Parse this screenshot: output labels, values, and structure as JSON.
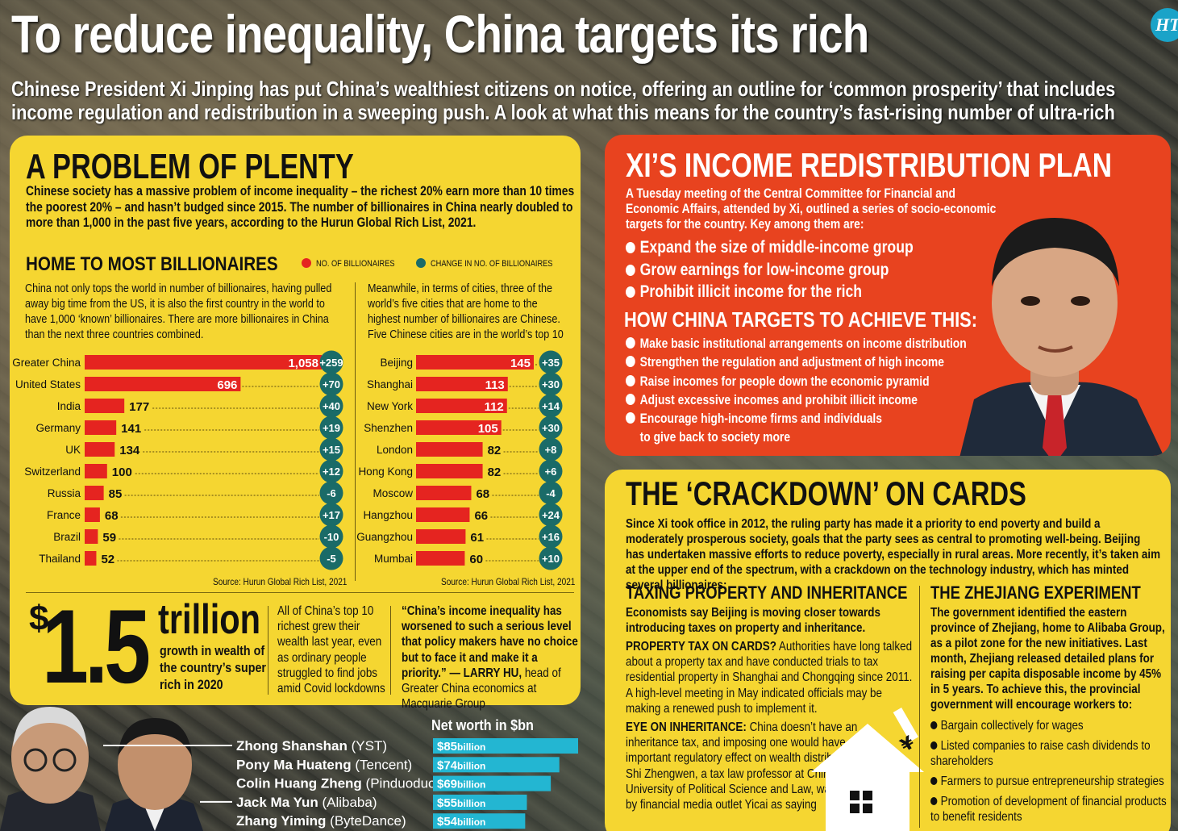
{
  "header": {
    "title": "To reduce inequality, China targets its rich",
    "subtitle": "Chinese President Xi Jinping has put China’s wealthiest citizens on notice, offering an outline for ‘common prosperity’ that includes income regulation and redistribution in a sweeping push. A look at what this means for the country’s fast-rising number of ultra-rich",
    "logo": "HT"
  },
  "problem": {
    "heading": "A PROBLEM OF PLENTY",
    "intro": "Chinese society has a massive problem of income inequality – the richest 20% earn more than 10 times the poorest 20% – and hasn’t budged since 2015. The number of billionaires in China nearly doubled to more than 1,000 in the past five years, according to the Hurun Global Rich List, 2021.",
    "subheading": "HOME TO MOST BILLIONAIRES",
    "legend_count": "NO. OF BILLIONAIRES",
    "legend_change": "CHANGE IN NO. OF BILLIONAIRES",
    "countries_text": "China not only tops the world in number of billionaires, having pulled away big time from the US, it is also the first country in the world to have 1,000 ‘known’ billionaires. There are more billionaires in China than the next three countries combined.",
    "cities_text": "Meanwhile, in terms of cities, three of the world’s five cities that are home to the highest number of billionaires are Chinese. Five Chinese cities are in the world’s top 10",
    "source_left": "Source: Hurun Global Rich List, 2021",
    "source_right": "Source: Hurun Global Rich List, 2021"
  },
  "stat": {
    "dollar": "$",
    "amount": "1.5",
    "unit": "trillion",
    "caption": "growth in wealth of the country’s super rich in 2020",
    "wealth_text": "All of China’s top 10 richest grew their wealth last year, even as ordinary people struggled to find jobs amid Covid lockdowns",
    "quote": "“China’s income inequality has worsened to such a serious level that policy makers have no choice but to face it and make it a priority.”",
    "quote_attr_name": "— LARRY HU,",
    "quote_attr_role": " head of Greater China economics at Macquarie Group"
  },
  "plan": {
    "heading": "XI’S INCOME REDISTRIBUTION PLAN",
    "intro": "A Tuesday meeting of the Central Committee for Financial and Economic Affairs, attended by Xi, outlined a series of socio-economic targets for the country. Key among them are:",
    "targets": [
      "Expand the size of middle-income group",
      "Grow earnings for low-income group",
      "Prohibit illicit income for the rich"
    ],
    "how_heading": "HOW CHINA TARGETS TO ACHIEVE THIS:",
    "methods": [
      "Make basic institutional arrangements on income distribution",
      "Strengthen the regulation and adjustment of high income",
      "Raise incomes for people down the economic pyramid",
      "Adjust excessive incomes and prohibit illicit income",
      "Encourage high-income firms and individuals",
      "to give back to society more"
    ]
  },
  "cards": {
    "heading": "THE ‘CRACKDOWN’ ON CARDS",
    "intro": "Since Xi took office in 2012, the ruling party has made it a priority to end poverty and build a moderately prosperous society, goals that the party sees as central to promoting well-being. Beijing has undertaken massive efforts to reduce poverty, especially in rural areas. More recently, it’s taken aim at the upper end of the spectrum, with a crackdown on the technology industry, which has minted several billionaires:",
    "tax_heading": "TAXING PROPERTY AND INHERITANCE",
    "tax_lead": "Economists say Beijing is moving closer towards introducing taxes on property and inheritance.",
    "property_label": "PROPERTY TAX ON CARDS?",
    "property_text": " Authorities have long talked about a property tax and have conducted trials to tax residential property in Shanghai and Chongqing since 2011. A high-level meeting in May indicated officials may be making a renewed push to implement it.",
    "inherit_label": "EYE ON INHERITANCE:",
    "inherit_text": " China doesn’t have an inheritance tax, and imposing one would have an important regulatory effect on wealth distribution, Shi Zhengwen, a tax law professor at China University of Political Science and Law, was cited by financial media outlet Yicai as saying",
    "yuan_symbol": "¥",
    "zj_heading": "THE ZHEJIANG EXPERIMENT",
    "zj_text": "The government identified the eastern province of Zhejiang, home to Alibaba Group, as a pilot zone for the new initiatives. Last month, Zhejiang released detailed plans for raising per capita disposable income by 45% in 5 years. To achieve this, the provincial government will encourage workers to:",
    "zj_items": [
      "Bargain collectively for wages",
      "Listed companies to raise cash dividends to shareholders",
      "Farmers to pursue entrepreneurship strategies",
      "Promotion of development of financial products to benefit residents"
    ]
  },
  "colors": {
    "yellow": "#f5d631",
    "red_bar": "#e52420",
    "teal_circle": "#1a6b68",
    "plan_red": "#e8431f",
    "cyan_bar": "#23b6d2"
  },
  "chart_data": [
    {
      "type": "bar",
      "title": "HOME TO MOST BILLIONAIRES — countries",
      "categories": [
        "Greater China",
        "United States",
        "India",
        "Germany",
        "UK",
        "Switzerland",
        "Russia",
        "France",
        "Brazil",
        "Thailand"
      ],
      "series": [
        {
          "name": "NO. OF BILLIONAIRES",
          "values": [
            1058,
            696,
            177,
            141,
            134,
            100,
            85,
            68,
            59,
            52
          ],
          "labels": [
            "1,058",
            "696",
            "177",
            "141",
            "134",
            "100",
            "85",
            "68",
            "59",
            "52"
          ]
        },
        {
          "name": "CHANGE IN NO. OF BILLIONAIRES",
          "values": [
            259,
            70,
            40,
            19,
            15,
            12,
            -6,
            17,
            -10,
            -5
          ],
          "labels": [
            "+259",
            "+70",
            "+40",
            "+19",
            "+15",
            "+12",
            "-6",
            "+17",
            "-10",
            "-5"
          ]
        }
      ],
      "xlim": [
        0,
        1058
      ]
    },
    {
      "type": "bar",
      "title": "HOME TO MOST BILLIONAIRES — cities",
      "categories": [
        "Beijing",
        "Shanghai",
        "New York",
        "Shenzhen",
        "London",
        "Hong Kong",
        "Moscow",
        "Hangzhou",
        "Guangzhou",
        "Mumbai"
      ],
      "series": [
        {
          "name": "NO. OF BILLIONAIRES",
          "values": [
            145,
            113,
            112,
            105,
            82,
            82,
            68,
            66,
            61,
            60
          ]
        },
        {
          "name": "CHANGE IN NO. OF BILLIONAIRES",
          "values": [
            35,
            30,
            14,
            30,
            8,
            6,
            -4,
            24,
            16,
            10
          ],
          "labels": [
            "+35",
            "+30",
            "+14",
            "+30",
            "+8",
            "+6",
            "-4",
            "+24",
            "+16",
            "+10"
          ]
        }
      ],
      "xlim": [
        0,
        145
      ]
    },
    {
      "type": "bar",
      "title": "Net worth in $bn",
      "categories": [
        "Zhong Shanshan",
        "Pony Ma Huateng",
        "Colin Huang Zheng",
        "Jack Ma Yun",
        "Zhang Yiming"
      ],
      "companies": [
        "(YST)",
        "(Tencent)",
        "(Pinduoduo)",
        "(Alibaba)",
        "(ByteDance)"
      ],
      "values": [
        85,
        74,
        69,
        55,
        54
      ],
      "labels": [
        "$85",
        "$74",
        "$69",
        "$55",
        "$54"
      ],
      "unit_label": "billion",
      "xlim": [
        0,
        85
      ]
    }
  ]
}
